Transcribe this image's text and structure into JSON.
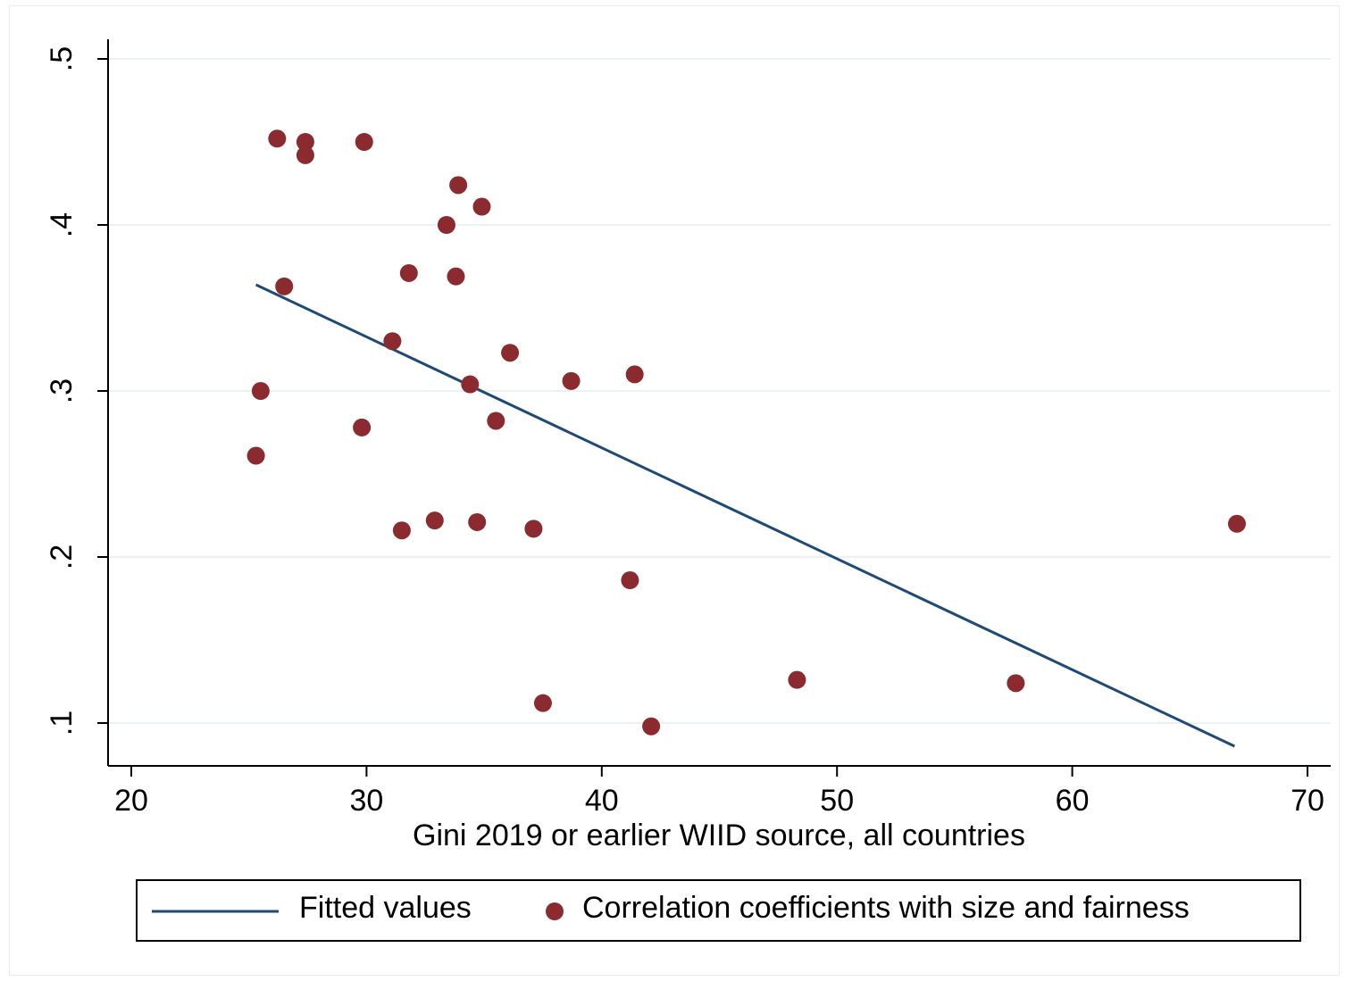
{
  "chart_data": {
    "type": "scatter",
    "title": "",
    "xlabel": "Gini 2019 or earlier WIID source, all countries",
    "ylabel": "",
    "xlim": [
      19,
      70.5
    ],
    "ylim": [
      0.074,
      0.512
    ],
    "x_ticks": [
      20,
      30,
      40,
      50,
      60,
      70
    ],
    "x_tick_labels": [
      "20",
      "30",
      "40",
      "50",
      "60",
      "70"
    ],
    "y_ticks": [
      0.1,
      0.2,
      0.3,
      0.4,
      0.5
    ],
    "y_tick_labels": [
      ".1",
      ".2",
      ".3",
      ".4",
      ".5"
    ],
    "grid": "horizontal",
    "legend_position": "bottom",
    "colors": {
      "points": "#8b2b2f",
      "fit_line": "#1f4a75",
      "grid": "#eaf0f3"
    },
    "series": [
      {
        "name": "Correlation coefficients with size and fairness",
        "type": "scatter",
        "points": [
          {
            "x": 26.2,
            "y": 0.452
          },
          {
            "x": 27.4,
            "y": 0.45
          },
          {
            "x": 29.9,
            "y": 0.45
          },
          {
            "x": 27.4,
            "y": 0.442
          },
          {
            "x": 33.9,
            "y": 0.424
          },
          {
            "x": 34.9,
            "y": 0.411
          },
          {
            "x": 33.4,
            "y": 0.4
          },
          {
            "x": 31.8,
            "y": 0.371
          },
          {
            "x": 33.8,
            "y": 0.369
          },
          {
            "x": 26.5,
            "y": 0.363
          },
          {
            "x": 31.1,
            "y": 0.33
          },
          {
            "x": 36.1,
            "y": 0.323
          },
          {
            "x": 41.4,
            "y": 0.31
          },
          {
            "x": 38.7,
            "y": 0.306
          },
          {
            "x": 34.4,
            "y": 0.304
          },
          {
            "x": 25.5,
            "y": 0.3
          },
          {
            "x": 35.5,
            "y": 0.282
          },
          {
            "x": 29.8,
            "y": 0.278
          },
          {
            "x": 25.3,
            "y": 0.261
          },
          {
            "x": 32.9,
            "y": 0.222
          },
          {
            "x": 34.7,
            "y": 0.221
          },
          {
            "x": 67.0,
            "y": 0.22
          },
          {
            "x": 37.1,
            "y": 0.217
          },
          {
            "x": 31.5,
            "y": 0.216
          },
          {
            "x": 41.2,
            "y": 0.186
          },
          {
            "x": 48.3,
            "y": 0.126
          },
          {
            "x": 57.6,
            "y": 0.124
          },
          {
            "x": 37.5,
            "y": 0.112
          },
          {
            "x": 42.1,
            "y": 0.098
          }
        ]
      },
      {
        "name": "Fitted values",
        "type": "line",
        "points": [
          {
            "x": 25.3,
            "y": 0.364
          },
          {
            "x": 66.9,
            "y": 0.086
          }
        ]
      }
    ]
  }
}
